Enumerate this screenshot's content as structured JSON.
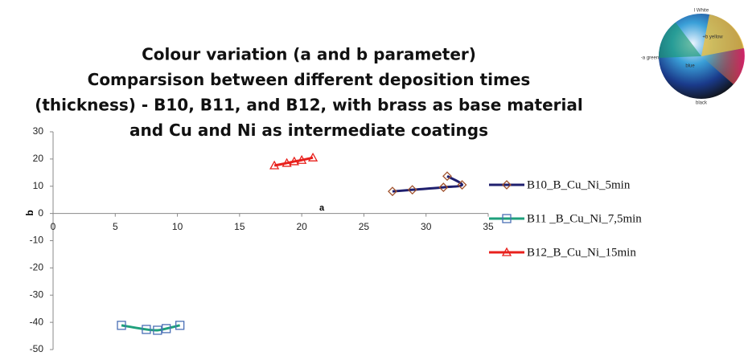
{
  "chart_data": {
    "type": "line",
    "title": [
      "Colour variation (a and b parameter)",
      "Comparsison between different deposition times",
      "(thickness) - B10, B11, and B12, with brass as base material",
      "and  Cu and Ni as intermediate coatings"
    ],
    "xlabel": "a",
    "ylabel": "b",
    "xlim": [
      0,
      35
    ],
    "xticks": [
      0,
      5,
      10,
      15,
      20,
      25,
      30,
      35
    ],
    "ylim": [
      -50,
      30
    ],
    "yticks": [
      -50,
      -40,
      -30,
      -20,
      -10,
      0,
      10,
      20,
      30
    ],
    "legend": "right",
    "series": [
      {
        "name": "B10_B_Cu_Ni_5min",
        "color": "#1f1f6e",
        "marker": "diamond",
        "marker_color": "#a0522d",
        "x": [
          27.3,
          28.9,
          31.4,
          32.9,
          31.7
        ],
        "values": [
          8.1,
          8.7,
          9.6,
          10.5,
          13.7
        ]
      },
      {
        "name": "B11 _B_Cu_Ni_7,5min",
        "color": "#1fa07c",
        "marker": "square",
        "marker_color": "#4a6fb5",
        "x": [
          5.5,
          7.5,
          8.4,
          9.1,
          10.2
        ],
        "values": [
          -41.1,
          -42.6,
          -42.9,
          -42.3,
          -41.1
        ]
      },
      {
        "name": "B12_B_Cu_Ni_15min",
        "color": "#e8201c",
        "marker": "triangle",
        "marker_color": "#e8201c",
        "x": [
          17.8,
          18.8,
          19.4,
          20.0,
          20.9
        ],
        "values": [
          17.6,
          18.5,
          19.1,
          19.6,
          20.5
        ]
      }
    ],
    "color_sphere_labels": [
      "l White",
      "+b yellow",
      "-a green",
      "blue",
      "black"
    ]
  }
}
